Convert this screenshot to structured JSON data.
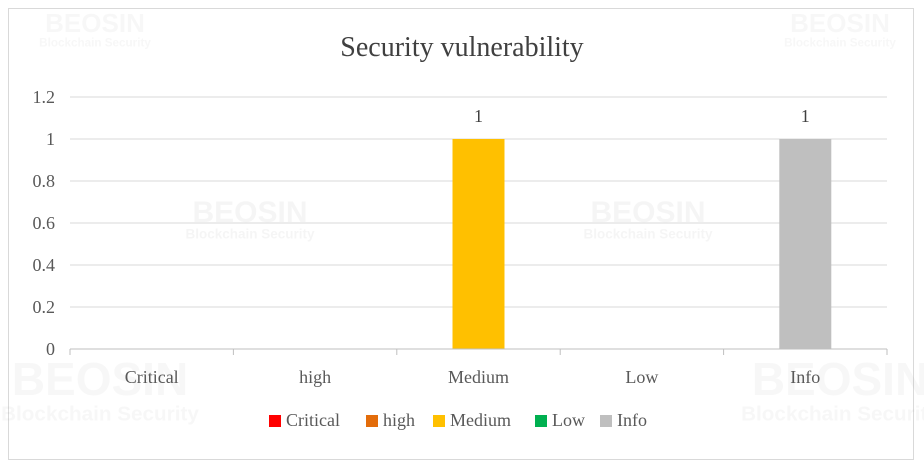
{
  "chart_data": {
    "type": "bar",
    "title": "Security vulnerability",
    "xlabel": "",
    "ylabel": "",
    "categories": [
      "Critical",
      "high",
      "Medium",
      "Low",
      "Info"
    ],
    "values": [
      0,
      0,
      1,
      0,
      1
    ],
    "colors": [
      "#ff0000",
      "#e36c0a",
      "#ffc000",
      "#00b050",
      "#bfbfbf"
    ],
    "data_labels": [
      "",
      "",
      "1",
      "",
      "1"
    ],
    "ylim": [
      0,
      1.2
    ],
    "yticks": [
      "0",
      "0.2",
      "0.4",
      "0.6",
      "0.8",
      "1",
      "1.2"
    ],
    "ytick_values": [
      0,
      0.2,
      0.4,
      0.6,
      0.8,
      1,
      1.2
    ],
    "grid": true,
    "legend": {
      "placement": "bottom",
      "entries": [
        "Critical",
        "high",
        "Medium",
        "Low",
        "Info"
      ]
    }
  },
  "watermark": {
    "brand": "BEOSIN",
    "tagline": "Blockchain Security"
  }
}
